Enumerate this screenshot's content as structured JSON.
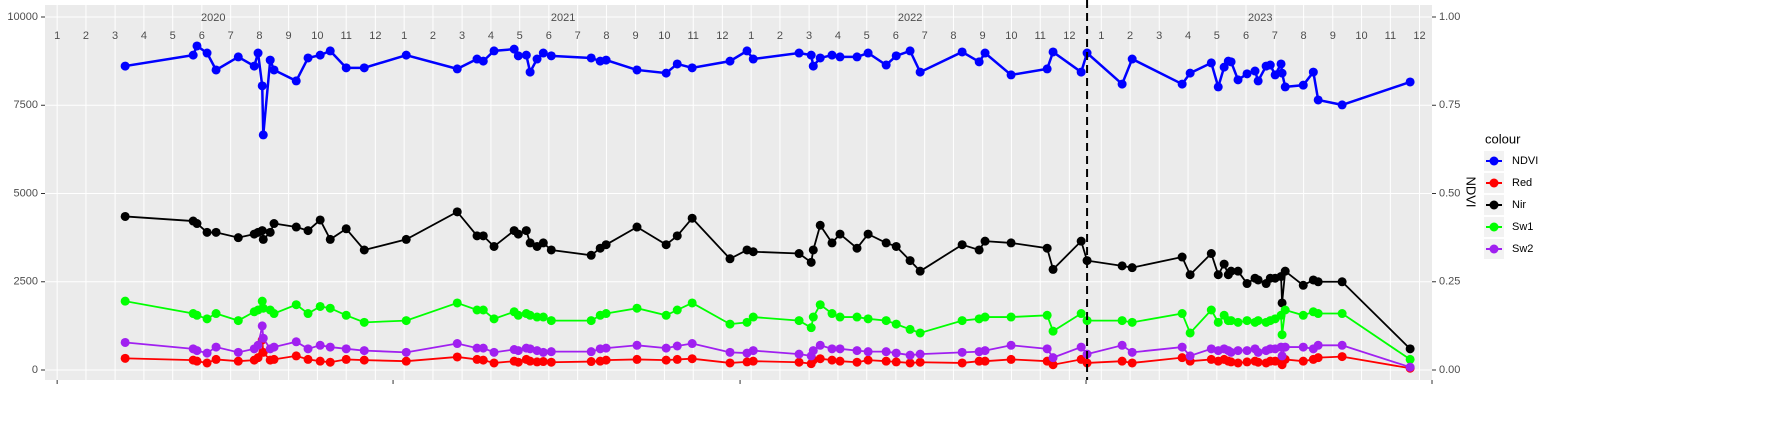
{
  "chart_data": {
    "type": "line",
    "x": [
      2020.196,
      2020.392,
      2020.403,
      2020.432,
      2020.458,
      2020.522,
      2020.568,
      2020.579,
      2020.591,
      2020.594,
      2020.614,
      2020.625,
      2020.689,
      2020.723,
      2020.758,
      2020.787,
      2020.833,
      2020.885,
      2021.006,
      2021.153,
      2021.21,
      2021.228,
      2021.259,
      2021.317,
      2021.329,
      2021.352,
      2021.363,
      2021.383,
      2021.401,
      2021.424,
      2021.539,
      2021.565,
      2021.582,
      2021.671,
      2021.755,
      2021.787,
      2021.83,
      2021.939,
      2021.988,
      2022.006,
      2022.138,
      2022.173,
      2022.179,
      2022.199,
      2022.233,
      2022.256,
      2022.305,
      2022.337,
      2022.389,
      2022.418,
      2022.458,
      2022.487,
      2022.608,
      2022.657,
      2022.674,
      2022.749,
      2022.853,
      2022.87,
      2022.951,
      2022.968,
      2023.069,
      2023.098,
      2023.242,
      2023.265,
      2023.326,
      2023.346,
      2023.363,
      2023.375,
      2023.383,
      2023.403,
      2023.429,
      2023.452,
      2023.461,
      2023.484,
      2023.496,
      2023.51,
      2023.527,
      2023.53,
      2023.539,
      2023.591,
      2023.62,
      2023.634,
      2023.703,
      2023.899
    ],
    "series": [
      {
        "name": "NDVI",
        "color": "#0000ff",
        "axis": "y2",
        "values": [
          0.861,
          0.892,
          0.918,
          0.898,
          0.85,
          0.887,
          0.861,
          0.898,
          0.805,
          0.666,
          0.878,
          0.85,
          0.819,
          0.884,
          0.892,
          0.904,
          0.856,
          0.856,
          0.892,
          0.853,
          0.881,
          0.875,
          0.904,
          0.909,
          0.89,
          0.892,
          0.844,
          0.881,
          0.898,
          0.89,
          0.884,
          0.875,
          0.878,
          0.85,
          0.841,
          0.867,
          0.856,
          0.875,
          0.904,
          0.881,
          0.898,
          0.892,
          0.861,
          0.884,
          0.892,
          0.887,
          0.887,
          0.898,
          0.864,
          0.89,
          0.904,
          0.844,
          0.901,
          0.873,
          0.898,
          0.836,
          0.853,
          0.901,
          0.844,
          0.898,
          0.81,
          0.881,
          0.81,
          0.841,
          0.87,
          0.802,
          0.858,
          0.875,
          0.873,
          0.822,
          0.839,
          0.847,
          0.819,
          0.861,
          0.864,
          0.836,
          0.867,
          0.841,
          0.802,
          0.807,
          0.844,
          0.765,
          0.751,
          0.816
        ]
      },
      {
        "name": "Red",
        "color": "#ff0000",
        "values": [
          330,
          280,
          250,
          200,
          300,
          250,
          280,
          350,
          850,
          500,
          280,
          300,
          400,
          300,
          250,
          220,
          300,
          280,
          250,
          370,
          300,
          280,
          200,
          250,
          220,
          300,
          250,
          230,
          240,
          220,
          240,
          250,
          280,
          300,
          280,
          300,
          320,
          200,
          230,
          250,
          220,
          180,
          280,
          320,
          280,
          250,
          220,
          280,
          250,
          230,
          200,
          220,
          200,
          250,
          250,
          300,
          250,
          150,
          300,
          200,
          250,
          200,
          350,
          250,
          300,
          250,
          300,
          250,
          230,
          200,
          230,
          250,
          220,
          200,
          250,
          250,
          280,
          150,
          300,
          250,
          300,
          350,
          380,
          50
        ]
      },
      {
        "name": "Nir",
        "color": "#000000",
        "values": [
          4350,
          4220,
          4150,
          3900,
          3900,
          3750,
          3850,
          3900,
          3950,
          3700,
          3900,
          4150,
          4050,
          3950,
          4250,
          3700,
          4000,
          3400,
          3700,
          4480,
          3800,
          3800,
          3500,
          3950,
          3850,
          3950,
          3600,
          3500,
          3600,
          3400,
          3250,
          3450,
          3550,
          4050,
          3550,
          3800,
          4300,
          3150,
          3400,
          3350,
          3300,
          3050,
          3400,
          4100,
          3600,
          3850,
          3450,
          3850,
          3600,
          3500,
          3100,
          2800,
          3550,
          3400,
          3650,
          3600,
          3450,
          2850,
          3650,
          3100,
          2950,
          2900,
          3200,
          2700,
          3300,
          2700,
          3000,
          2700,
          2800,
          2800,
          2450,
          2600,
          2550,
          2450,
          2600,
          2600,
          2650,
          1900,
          2800,
          2400,
          2550,
          2500,
          2500,
          600
        ]
      },
      {
        "name": "Sw1",
        "color": "#00ff00",
        "values": [
          1950,
          1600,
          1550,
          1450,
          1600,
          1400,
          1650,
          1700,
          1950,
          1750,
          1700,
          1600,
          1850,
          1600,
          1800,
          1750,
          1550,
          1350,
          1400,
          1900,
          1700,
          1700,
          1450,
          1650,
          1550,
          1600,
          1550,
          1500,
          1500,
          1400,
          1400,
          1550,
          1600,
          1750,
          1550,
          1700,
          1900,
          1300,
          1350,
          1500,
          1400,
          1200,
          1500,
          1850,
          1600,
          1500,
          1500,
          1450,
          1400,
          1300,
          1150,
          1050,
          1400,
          1450,
          1500,
          1500,
          1550,
          1100,
          1600,
          1400,
          1400,
          1350,
          1600,
          1050,
          1700,
          1350,
          1550,
          1400,
          1400,
          1350,
          1400,
          1350,
          1400,
          1350,
          1400,
          1450,
          1550,
          1000,
          1700,
          1550,
          1650,
          1600,
          1600,
          300
        ]
      },
      {
        "name": "Sw2",
        "color": "#a020f0",
        "values": [
          780,
          600,
          550,
          480,
          650,
          500,
          600,
          700,
          1250,
          900,
          600,
          650,
          800,
          600,
          700,
          650,
          600,
          550,
          500,
          750,
          620,
          620,
          500,
          580,
          550,
          620,
          600,
          550,
          500,
          520,
          520,
          600,
          620,
          700,
          620,
          680,
          750,
          500,
          480,
          550,
          450,
          400,
          550,
          700,
          600,
          600,
          550,
          520,
          520,
          480,
          420,
          450,
          500,
          520,
          550,
          700,
          600,
          350,
          650,
          450,
          700,
          500,
          650,
          400,
          600,
          550,
          600,
          550,
          500,
          550,
          550,
          600,
          500,
          550,
          600,
          600,
          650,
          400,
          650,
          650,
          600,
          700,
          700,
          80
        ]
      }
    ],
    "xlim": [
      2019.965,
      2023.962
    ],
    "xticks": [
      2020,
      2020.968,
      2021.968,
      2022.965,
      2023.962
    ],
    "month_ticks": [
      {
        "value": 2020,
        "label": "1"
      },
      {
        "value": 2020.083,
        "label": "2"
      },
      {
        "value": 2020.167,
        "label": "3"
      },
      {
        "value": 2020.25,
        "label": "4"
      },
      {
        "value": 2020.333,
        "label": "5"
      },
      {
        "value": 2020.417,
        "label": "6"
      },
      {
        "value": 2020.5,
        "label": "7"
      },
      {
        "value": 2020.583,
        "label": "8"
      },
      {
        "value": 2020.667,
        "label": "9"
      },
      {
        "value": 2020.75,
        "label": "10"
      },
      {
        "value": 2020.833,
        "label": "11"
      },
      {
        "value": 2020.917,
        "label": "12"
      },
      {
        "value": 2021,
        "label": "1"
      },
      {
        "value": 2021.083,
        "label": "2"
      },
      {
        "value": 2021.167,
        "label": "3"
      },
      {
        "value": 2021.25,
        "label": "4"
      },
      {
        "value": 2021.333,
        "label": "5"
      },
      {
        "value": 2021.417,
        "label": "6"
      },
      {
        "value": 2021.5,
        "label": "7"
      },
      {
        "value": 2021.583,
        "label": "8"
      },
      {
        "value": 2021.667,
        "label": "9"
      },
      {
        "value": 2021.75,
        "label": "10"
      },
      {
        "value": 2021.833,
        "label": "11"
      },
      {
        "value": 2021.917,
        "label": "12"
      },
      {
        "value": 2022,
        "label": "1"
      },
      {
        "value": 2022.083,
        "label": "2"
      },
      {
        "value": 2022.167,
        "label": "3"
      },
      {
        "value": 2022.25,
        "label": "4"
      },
      {
        "value": 2022.333,
        "label": "5"
      },
      {
        "value": 2022.417,
        "label": "6"
      },
      {
        "value": 2022.5,
        "label": "7"
      },
      {
        "value": 2022.583,
        "label": "8"
      },
      {
        "value": 2022.667,
        "label": "9"
      },
      {
        "value": 2022.75,
        "label": "10"
      },
      {
        "value": 2022.833,
        "label": "11"
      },
      {
        "value": 2022.917,
        "label": "12"
      },
      {
        "value": 2023.009,
        "label": "1"
      },
      {
        "value": 2023.092,
        "label": "2"
      },
      {
        "value": 2023.176,
        "label": "3"
      },
      {
        "value": 2023.259,
        "label": "4"
      },
      {
        "value": 2023.342,
        "label": "5"
      },
      {
        "value": 2023.426,
        "label": "6"
      },
      {
        "value": 2023.509,
        "label": "7"
      },
      {
        "value": 2023.592,
        "label": "8"
      },
      {
        "value": 2023.676,
        "label": "9"
      },
      {
        "value": 2023.759,
        "label": "10"
      },
      {
        "value": 2023.842,
        "label": "11"
      },
      {
        "value": 2023.926,
        "label": "12"
      }
    ],
    "year_labels": [
      {
        "value": 2020.45,
        "label": "2020"
      },
      {
        "value": 2021.458,
        "label": "2021"
      },
      {
        "value": 2022.458,
        "label": "2022"
      },
      {
        "value": 2023.467,
        "label": "2023"
      }
    ],
    "vline": 2022.968,
    "ylim": [
      -283,
      10340
    ],
    "yticks": [
      0,
      2500,
      5000,
      7500,
      10000
    ],
    "y2lim": [
      -0.0283,
      1.034
    ],
    "y2ticks": [
      {
        "value": 0,
        "label": "0.00"
      },
      {
        "value": 0.25,
        "label": "0.25"
      },
      {
        "value": 0.5,
        "label": "0.50"
      },
      {
        "value": 0.75,
        "label": "0.75"
      },
      {
        "value": 1,
        "label": "1.00"
      }
    ],
    "y2_label": "NDVI",
    "legend_title": "colour",
    "legend_position": "right",
    "grid": true
  }
}
